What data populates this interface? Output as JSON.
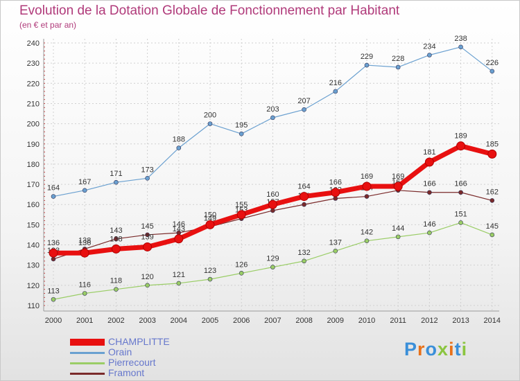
{
  "chart_data": {
    "type": "line",
    "title": "Evolution de la Dotation Globale de Fonctionnement par Habitant",
    "subtitle": "(en € et par an)",
    "xlabel": "",
    "ylabel": "",
    "ylim": [
      110,
      240
    ],
    "yticks": [
      110,
      120,
      130,
      140,
      150,
      160,
      170,
      180,
      190,
      200,
      210,
      220,
      230,
      240
    ],
    "categories": [
      "2000",
      "2001",
      "2002",
      "2003",
      "2004",
      "2005",
      "2006",
      "2007",
      "2008",
      "2009",
      "2010",
      "2011",
      "2012",
      "2013",
      "2014"
    ],
    "series": [
      {
        "name": "CHAMPLITTE",
        "color": "#e81010",
        "values": [
          136,
          136,
          138,
          139,
          143,
          150,
          155,
          160,
          164,
          166,
          169,
          169,
          181,
          189,
          185
        ]
      },
      {
        "name": "Orain",
        "color": "#6aa0d0",
        "values": [
          164,
          167,
          171,
          173,
          188,
          200,
          195,
          203,
          207,
          216,
          229,
          228,
          234,
          238,
          226
        ]
      },
      {
        "name": "Pierrecourt",
        "color": "#9acd66",
        "values": [
          113,
          116,
          118,
          120,
          121,
          123,
          126,
          129,
          132,
          137,
          142,
          144,
          146,
          151,
          145
        ]
      },
      {
        "name": "Framont",
        "color": "#7a2a2a",
        "values": [
          133,
          138,
          143,
          145,
          146,
          149,
          153,
          157,
          160,
          163,
          164,
          167,
          166,
          166,
          162
        ]
      }
    ],
    "legend": "bottom-left"
  },
  "logo": {
    "text": "Proxiti"
  }
}
